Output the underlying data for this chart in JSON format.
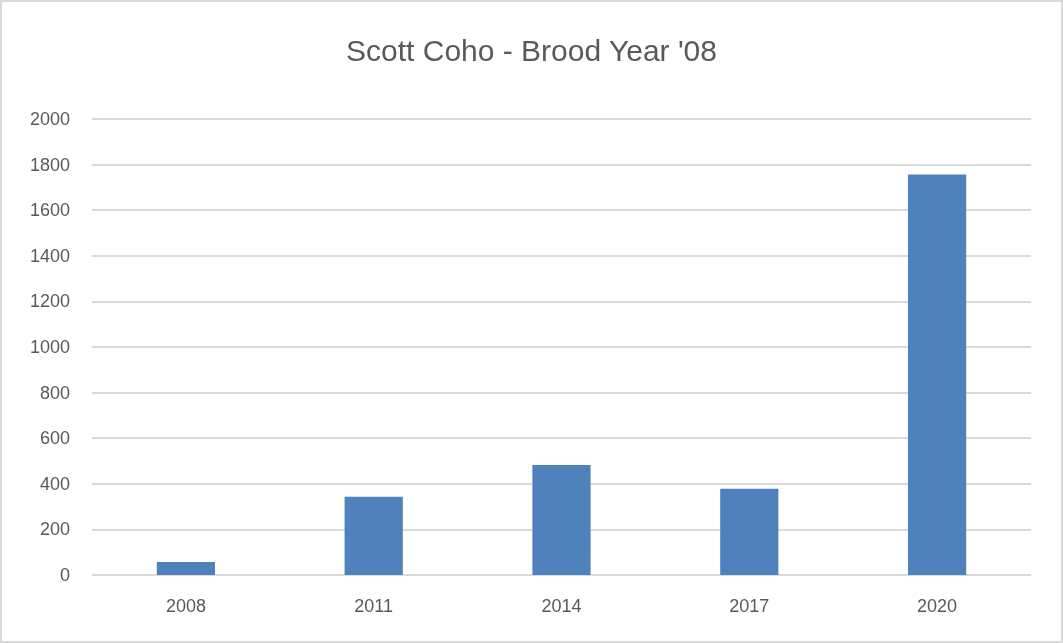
{
  "chart_data": {
    "type": "bar",
    "title": "Scott Coho - Brood Year '08",
    "categories": [
      "2008",
      "2011",
      "2014",
      "2017",
      "2020"
    ],
    "values": [
      57,
      343,
      483,
      378,
      1757
    ],
    "color": "#4f81bd",
    "ylim": [
      0,
      2000
    ],
    "yticks": [
      0,
      200,
      400,
      600,
      800,
      1000,
      1200,
      1400,
      1600,
      1800,
      2000
    ],
    "grid": "y"
  }
}
